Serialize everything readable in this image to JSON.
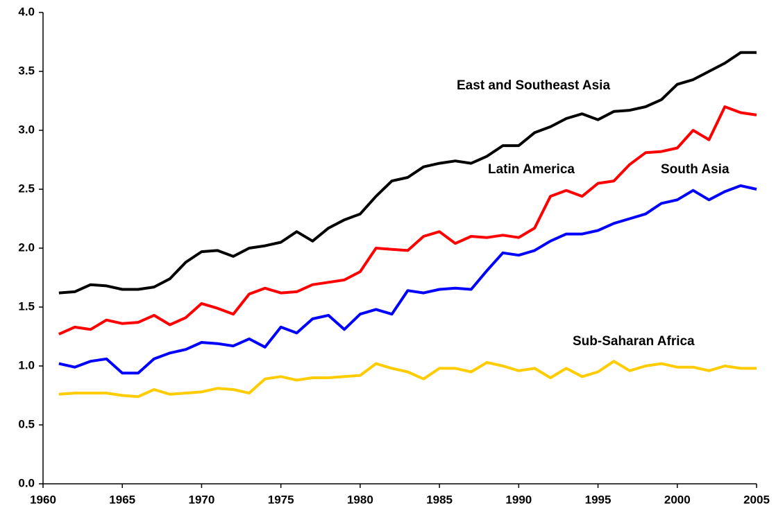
{
  "chart_data": {
    "type": "line",
    "x": [
      1961,
      1962,
      1963,
      1964,
      1965,
      1966,
      1967,
      1968,
      1969,
      1970,
      1971,
      1972,
      1973,
      1974,
      1975,
      1976,
      1977,
      1978,
      1979,
      1980,
      1981,
      1982,
      1983,
      1984,
      1985,
      1986,
      1987,
      1988,
      1989,
      1990,
      1991,
      1992,
      1993,
      1994,
      1995,
      1996,
      1997,
      1998,
      1999,
      2000,
      2001,
      2002,
      2003,
      2004,
      2005
    ],
    "series": [
      {
        "name": "East and Southeast Asia",
        "color": "#000000",
        "values": [
          1.62,
          1.63,
          1.69,
          1.68,
          1.65,
          1.65,
          1.67,
          1.74,
          1.88,
          1.97,
          1.98,
          1.93,
          2.0,
          2.02,
          2.05,
          2.14,
          2.06,
          2.17,
          2.24,
          2.29,
          2.44,
          2.57,
          2.6,
          2.69,
          2.72,
          2.74,
          2.72,
          2.78,
          2.87,
          2.87,
          2.98,
          3.03,
          3.1,
          3.14,
          3.09,
          3.16,
          3.17,
          3.2,
          3.26,
          3.39,
          3.43,
          3.5,
          3.57,
          3.66,
          3.66
        ]
      },
      {
        "name": "Latin America",
        "color": "#ff0000",
        "values": [
          1.27,
          1.33,
          1.31,
          1.39,
          1.36,
          1.37,
          1.43,
          1.35,
          1.41,
          1.53,
          1.49,
          1.44,
          1.61,
          1.66,
          1.62,
          1.63,
          1.69,
          1.71,
          1.73,
          1.8,
          2.0,
          1.99,
          1.98,
          2.1,
          2.14,
          2.04,
          2.1,
          2.09,
          2.11,
          2.09,
          2.17,
          2.44,
          2.49,
          2.44,
          2.55,
          2.57,
          2.71,
          2.81,
          2.82,
          2.85,
          3.0,
          2.92,
          3.2,
          3.15,
          3.13
        ]
      },
      {
        "name": "South Asia",
        "color": "#0000ff",
        "values": [
          1.02,
          0.99,
          1.04,
          1.06,
          0.94,
          0.94,
          1.06,
          1.11,
          1.14,
          1.2,
          1.19,
          1.17,
          1.23,
          1.16,
          1.33,
          1.28,
          1.4,
          1.43,
          1.31,
          1.44,
          1.48,
          1.44,
          1.64,
          1.62,
          1.65,
          1.66,
          1.65,
          1.81,
          1.96,
          1.94,
          1.98,
          2.06,
          2.12,
          2.12,
          2.15,
          2.21,
          2.25,
          2.29,
          2.38,
          2.41,
          2.49,
          2.41,
          2.48,
          2.53,
          2.5
        ]
      },
      {
        "name": "Sub-Saharan Africa",
        "color": "#ffcc00",
        "values": [
          0.76,
          0.77,
          0.77,
          0.77,
          0.75,
          0.74,
          0.8,
          0.76,
          0.77,
          0.78,
          0.81,
          0.8,
          0.77,
          0.89,
          0.91,
          0.88,
          0.9,
          0.9,
          0.91,
          0.92,
          1.02,
          0.98,
          0.95,
          0.89,
          0.98,
          0.98,
          0.95,
          1.03,
          1.0,
          0.96,
          0.98,
          0.9,
          0.98,
          0.91,
          0.95,
          1.04,
          0.96,
          1.0,
          1.02,
          0.99,
          0.99,
          0.96,
          1.0,
          0.98,
          0.98
        ]
      }
    ],
    "xlim": [
      1960,
      2005
    ],
    "xticks": [
      1960,
      1965,
      1970,
      1975,
      1980,
      1985,
      1990,
      1995,
      2000,
      2005
    ],
    "ylim": [
      0,
      4
    ],
    "yticks": [
      {
        "value": 0,
        "label": "0.0"
      },
      0.5,
      {
        "value": 1,
        "label": "1.0"
      },
      1.5,
      {
        "value": 2,
        "label": "2.0"
      },
      2.5,
      {
        "value": 3,
        "label": "3.0"
      },
      3.5,
      {
        "value": 4,
        "label": "4.0"
      }
    ],
    "grid": false
  }
}
